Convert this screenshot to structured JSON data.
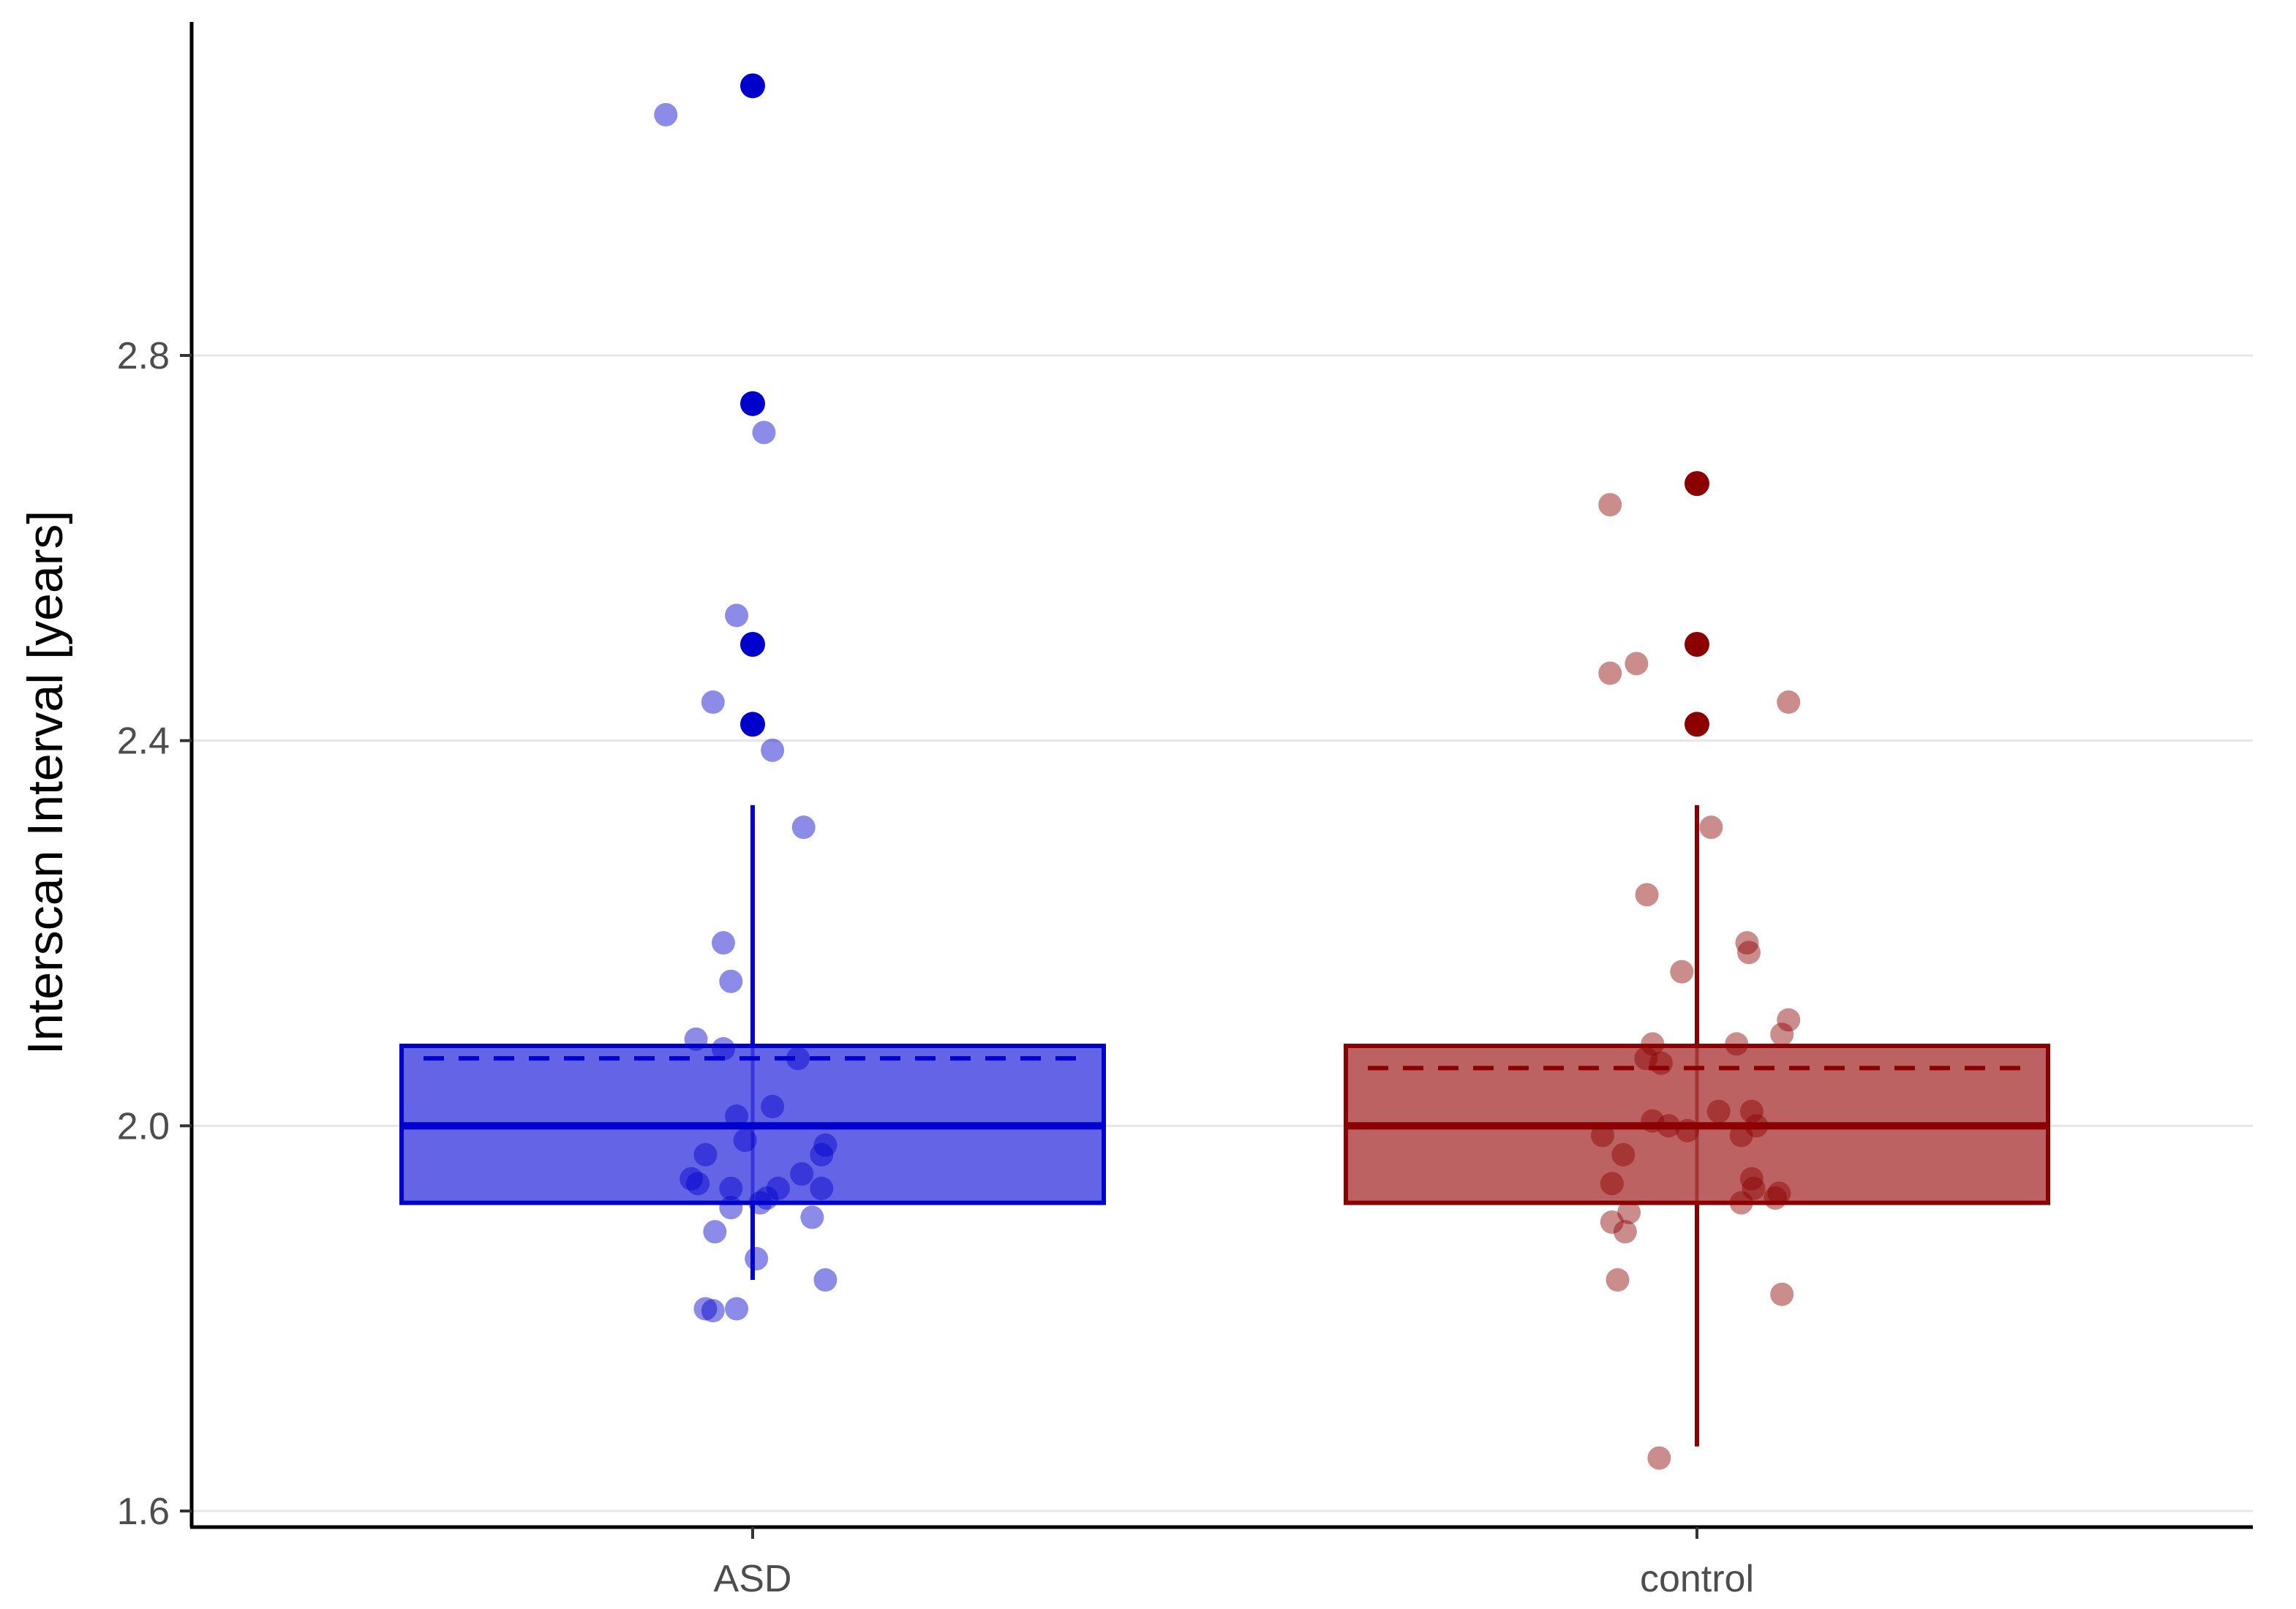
{
  "chart_data": {
    "type": "box",
    "xlabel": "",
    "ylabel": "Interscan Interval [years]",
    "ylim": [
      1.6,
      3.16
    ],
    "yticks": [
      1.6,
      2.0,
      2.4,
      2.8
    ],
    "ytick_labels": [
      "1.6",
      "2.0",
      "2.4",
      "2.8"
    ],
    "grid": "horizontal-major",
    "categories": [
      "ASD",
      "control"
    ],
    "groups": [
      {
        "name": "ASD",
        "color": "#0000cd",
        "fill": "#6464e6",
        "box": {
          "whisker_low": 1.84,
          "q1": 1.92,
          "median": 2.0,
          "q3": 2.083,
          "whisker_high": 2.333,
          "mean": 2.07
        },
        "outliers": [
          3.08,
          2.75,
          2.5,
          2.417
        ],
        "jitter_points": [
          {
            "x": 0.908,
            "y": 3.05
          },
          {
            "x": 1.012,
            "y": 2.72
          },
          {
            "x": 0.983,
            "y": 2.53
          },
          {
            "x": 0.958,
            "y": 2.44
          },
          {
            "x": 1.021,
            "y": 2.39
          },
          {
            "x": 1.054,
            "y": 2.31
          },
          {
            "x": 0.969,
            "y": 2.19
          },
          {
            "x": 0.977,
            "y": 2.15
          },
          {
            "x": 0.94,
            "y": 2.09
          },
          {
            "x": 0.969,
            "y": 2.08
          },
          {
            "x": 1.048,
            "y": 2.07
          },
          {
            "x": 0.983,
            "y": 2.01
          },
          {
            "x": 1.021,
            "y": 2.02
          },
          {
            "x": 0.992,
            "y": 1.985
          },
          {
            "x": 0.95,
            "y": 1.97
          },
          {
            "x": 1.077,
            "y": 1.98
          },
          {
            "x": 1.073,
            "y": 1.97
          },
          {
            "x": 1.052,
            "y": 1.95
          },
          {
            "x": 0.935,
            "y": 1.945
          },
          {
            "x": 0.942,
            "y": 1.94
          },
          {
            "x": 0.977,
            "y": 1.935
          },
          {
            "x": 1.027,
            "y": 1.935
          },
          {
            "x": 1.073,
            "y": 1.935
          },
          {
            "x": 1.015,
            "y": 1.925
          },
          {
            "x": 1.008,
            "y": 1.92
          },
          {
            "x": 0.977,
            "y": 1.915
          },
          {
            "x": 1.063,
            "y": 1.905
          },
          {
            "x": 0.96,
            "y": 1.89
          },
          {
            "x": 1.004,
            "y": 1.862
          },
          {
            "x": 1.077,
            "y": 1.84
          },
          {
            "x": 0.95,
            "y": 1.81
          },
          {
            "x": 0.958,
            "y": 1.808
          },
          {
            "x": 0.983,
            "y": 1.81
          }
        ]
      },
      {
        "name": "control",
        "color": "#8b0000",
        "fill": "#bc6262",
        "box": {
          "whisker_low": 1.667,
          "q1": 1.92,
          "median": 2.0,
          "q3": 2.083,
          "whisker_high": 2.333,
          "mean": 2.06
        },
        "outliers": [
          2.667,
          2.5,
          2.417
        ],
        "jitter_points": [
          {
            "x": 1.908,
            "y": 2.645
          },
          {
            "x": 1.936,
            "y": 2.48
          },
          {
            "x": 1.908,
            "y": 2.47
          },
          {
            "x": 2.097,
            "y": 2.44
          },
          {
            "x": 2.015,
            "y": 2.31
          },
          {
            "x": 1.947,
            "y": 2.24
          },
          {
            "x": 2.053,
            "y": 2.19
          },
          {
            "x": 2.055,
            "y": 2.18
          },
          {
            "x": 1.984,
            "y": 2.16
          },
          {
            "x": 2.097,
            "y": 2.11
          },
          {
            "x": 2.09,
            "y": 2.095
          },
          {
            "x": 2.042,
            "y": 2.085
          },
          {
            "x": 1.953,
            "y": 2.085
          },
          {
            "x": 1.946,
            "y": 2.07
          },
          {
            "x": 1.962,
            "y": 2.065
          },
          {
            "x": 2.023,
            "y": 2.015
          },
          {
            "x": 2.058,
            "y": 2.015
          },
          {
            "x": 1.953,
            "y": 2.005
          },
          {
            "x": 1.97,
            "y": 2.0
          },
          {
            "x": 2.063,
            "y": 2.0
          },
          {
            "x": 1.99,
            "y": 1.995
          },
          {
            "x": 2.047,
            "y": 1.99
          },
          {
            "x": 1.9,
            "y": 1.99
          },
          {
            "x": 1.922,
            "y": 1.97
          },
          {
            "x": 2.058,
            "y": 1.945
          },
          {
            "x": 1.91,
            "y": 1.94
          },
          {
            "x": 2.06,
            "y": 1.935
          },
          {
            "x": 2.087,
            "y": 1.93
          },
          {
            "x": 2.083,
            "y": 1.925
          },
          {
            "x": 2.047,
            "y": 1.92
          },
          {
            "x": 1.928,
            "y": 1.91
          },
          {
            "x": 1.91,
            "y": 1.9
          },
          {
            "x": 1.924,
            "y": 1.89
          },
          {
            "x": 1.916,
            "y": 1.84
          },
          {
            "x": 2.09,
            "y": 1.825
          },
          {
            "x": 1.96,
            "y": 1.655
          }
        ]
      }
    ]
  }
}
